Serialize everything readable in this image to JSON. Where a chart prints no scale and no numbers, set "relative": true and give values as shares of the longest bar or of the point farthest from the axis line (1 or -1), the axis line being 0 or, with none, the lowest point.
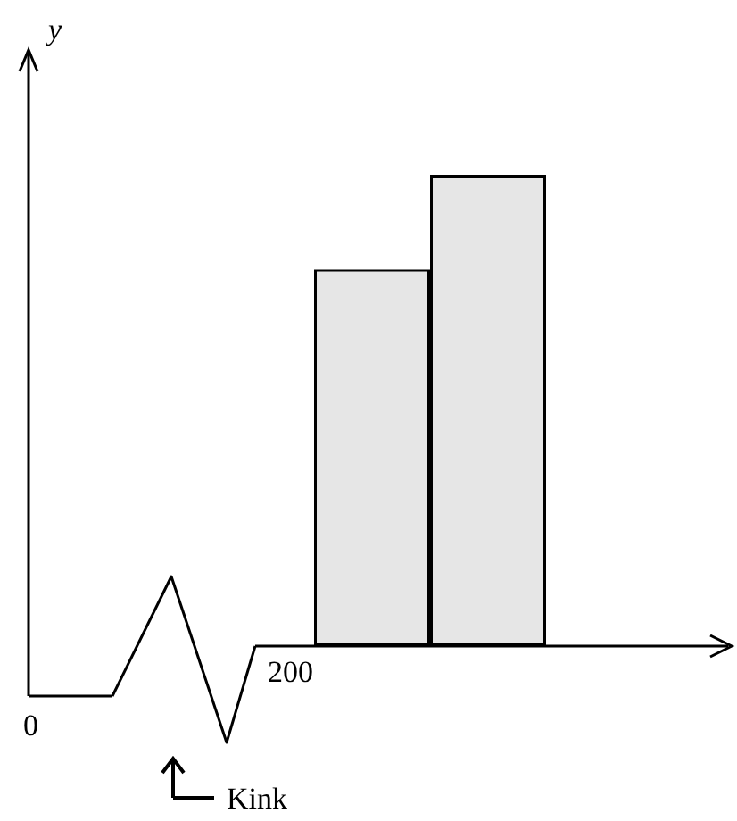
{
  "chart_data": {
    "type": "bar",
    "relative": true,
    "categories": [
      null,
      null
    ],
    "values": [
      0.8,
      1
    ],
    "color": "#e6e6e6",
    "annotations": [
      "y",
      "0",
      "200",
      "Kink"
    ]
  }
}
